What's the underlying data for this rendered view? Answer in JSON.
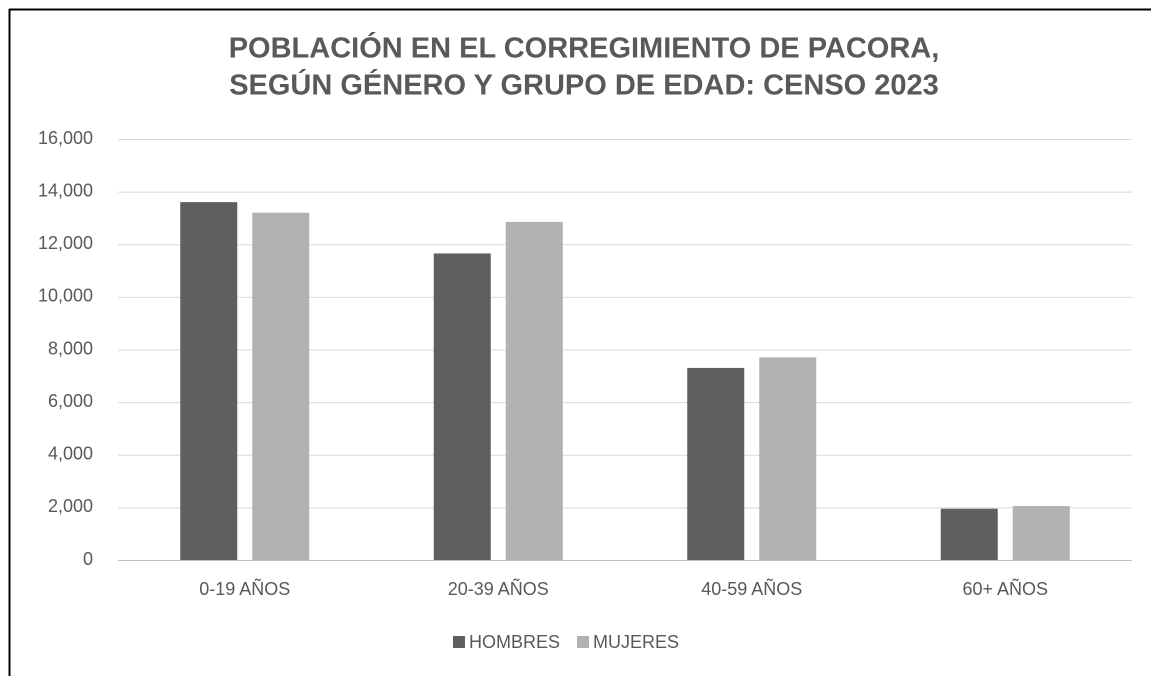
{
  "chart_data": {
    "type": "bar",
    "title": [
      "POBLACIÓN EN EL CORREGIMIENTO DE PACORA,",
      "SEGÚN GÉNERO Y GRUPO DE EDAD: CENSO 2023"
    ],
    "categories": [
      "0-19 AÑOS",
      "20-39 AÑOS",
      "40-59 AÑOS",
      "60+ AÑOS"
    ],
    "series": [
      {
        "name": "HOMBRES",
        "color": "#5f5f5f",
        "values": [
          13600,
          11650,
          7300,
          1950
        ]
      },
      {
        "name": "MUJERES",
        "color": "#b2b2b2",
        "values": [
          13200,
          12850,
          7700,
          2050
        ]
      }
    ],
    "ylim": [
      0,
      16000
    ],
    "yticks": [
      0,
      {
        "value": 2000,
        "label": "2,000"
      },
      {
        "value": 4000,
        "label": "4,000"
      },
      {
        "value": 6000,
        "label": "6,000"
      },
      {
        "value": 8000,
        "label": "8,000"
      },
      {
        "value": 10000,
        "label": "10,000"
      },
      {
        "value": 12000,
        "label": "12,000"
      },
      {
        "value": 14000,
        "label": "14,000"
      },
      {
        "value": 16000,
        "label": "16,000"
      }
    ],
    "grid": true,
    "legend": "bottom"
  }
}
